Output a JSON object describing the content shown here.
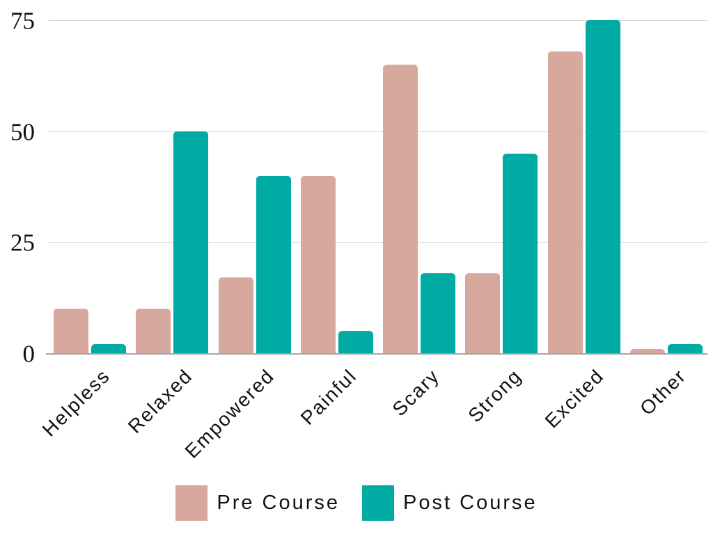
{
  "chart_data": {
    "type": "bar",
    "title": "",
    "categories": [
      "Helpless",
      "Relaxed",
      "Empowered",
      "Painful",
      "Scary",
      "Strong",
      "Excited",
      "Other"
    ],
    "series": [
      {
        "name": "Pre Course",
        "color": "#d7a89d",
        "values": [
          10,
          10,
          17,
          40,
          65,
          18,
          68,
          1
        ]
      },
      {
        "name": "Post Course",
        "color": "#00aba4",
        "values": [
          2,
          50,
          40,
          5,
          18,
          45,
          75,
          2
        ]
      }
    ],
    "xlabel": "",
    "ylabel": "",
    "yticks": [
      0,
      25,
      50,
      75
    ],
    "ylim": [
      0,
      75
    ],
    "grid": true,
    "legend_position": "bottom",
    "x_label_rotation_deg": -45
  },
  "colors": {
    "background": "#ffffff",
    "gridline": "#d9d9d9",
    "axis_line": "#a6a6a6",
    "text": "#111111"
  }
}
